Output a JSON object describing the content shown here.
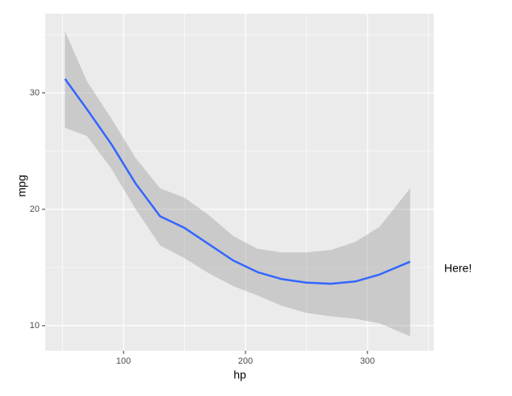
{
  "chart_data": {
    "type": "smooth",
    "x_label": "hp",
    "y_label": "mpg",
    "x": [
      52,
      70,
      90,
      110,
      130,
      150,
      170,
      190,
      210,
      230,
      250,
      270,
      290,
      310,
      335
    ],
    "series": [
      {
        "color": "#3366ff",
        "band_color": "#999999",
        "values": [
          31.2,
          28.6,
          25.6,
          22.2,
          19.4,
          18.4,
          17.0,
          15.6,
          14.6,
          14.0,
          13.7,
          13.6,
          13.8,
          14.4,
          15.5
        ],
        "upper": [
          35.3,
          31.0,
          27.8,
          24.4,
          21.8,
          21.0,
          19.5,
          17.7,
          16.6,
          16.3,
          16.3,
          16.5,
          17.2,
          18.5,
          21.8
        ],
        "lower": [
          27.0,
          26.3,
          23.5,
          20.0,
          16.9,
          15.8,
          14.5,
          13.4,
          12.6,
          11.7,
          11.1,
          10.8,
          10.6,
          10.2,
          9.1
        ]
      }
    ],
    "xlim": [
      35.8,
      354.3
    ],
    "ylim": [
      7.85,
      36.8
    ],
    "xticks": [
      100,
      200,
      300
    ],
    "yticks": [
      10,
      20,
      30
    ],
    "x_minor_ticks": [
      50,
      150,
      250,
      350
    ],
    "y_minor_ticks": [
      15,
      25,
      35
    ],
    "grid": true,
    "panel_color": "#ebebeb",
    "annotation": "Here!"
  }
}
